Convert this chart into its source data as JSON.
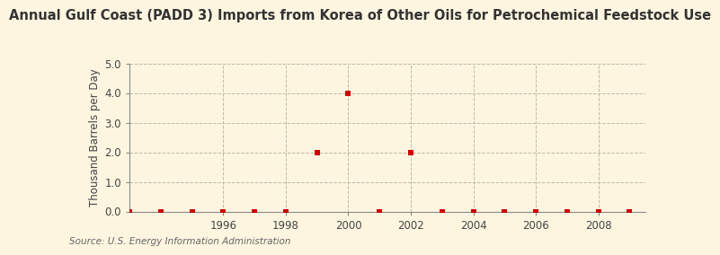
{
  "title": "Annual Gulf Coast (PADD 3) Imports from Korea of Other Oils for Petrochemical Feedstock Use",
  "ylabel": "Thousand Barrels per Day",
  "source": "Source: U.S. Energy Information Administration",
  "background_color": "#fdf5e0",
  "years": [
    1993,
    1994,
    1995,
    1996,
    1997,
    1998,
    1999,
    2000,
    2001,
    2002,
    2003,
    2004,
    2005,
    2006,
    2007,
    2008,
    2009
  ],
  "values": [
    0,
    0,
    0,
    0,
    0,
    0,
    2,
    4,
    0,
    2,
    0,
    0,
    0,
    0,
    0,
    0,
    0
  ],
  "point_color": "#cc0000",
  "point_marker": "s",
  "point_size": 18,
  "xlim": [
    1993,
    2009.5
  ],
  "ylim": [
    0,
    5.0
  ],
  "yticks": [
    0.0,
    1.0,
    2.0,
    3.0,
    4.0,
    5.0
  ],
  "xticks": [
    1996,
    1998,
    2000,
    2002,
    2004,
    2006,
    2008
  ],
  "grid_color": "#bbbbaa",
  "grid_style": "--",
  "title_fontsize": 10.5,
  "axis_fontsize": 8.5,
  "tick_fontsize": 8.5,
  "source_fontsize": 7.5
}
